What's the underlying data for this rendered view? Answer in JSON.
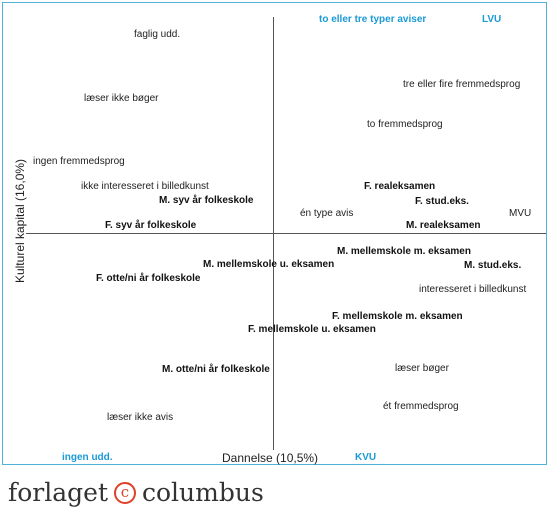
{
  "axes": {
    "x_label": "Dannelse (10,5%)",
    "y_label": "Kulturel kapital (16,0%)"
  },
  "corners": {
    "top_left": "to eller tre typer aviser",
    "top_right": "LVU",
    "bottom_left": "ingen udd.",
    "bottom_right": "KVU",
    "right": "MVU"
  },
  "labels": {
    "faglig_udd": "faglig udd.",
    "laeser_ikke_boeger": "læser ikke bøger",
    "tre_fire_fremmedsprog": "tre eller fire fremmedsprog",
    "to_fremmedsprog": "to fremmedsprog",
    "ingen_fremmedsprog": "ingen fremmedsprog",
    "ikke_interesseret": "ikke interesseret i billedkunst",
    "f_realeksamen": "F. realeksamen",
    "m_syv_aar": "M. syv år folkeskole",
    "f_stud": "F. stud.eks.",
    "en_type_avis": "én type avis",
    "m_realeksamen": "M. realeksamen",
    "f_syv_aar": "F. syv år folkeskole",
    "m_mellemskole_m": "M. mellemskole m. eksamen",
    "m_mellemskole_u": "M. mellemskole u. eksamen",
    "m_stud": "M. stud.eks.",
    "f_otte_ni": "F. otte/ni år folkeskole",
    "interesseret": "interesseret i billedkunst",
    "f_mellemskole_m": "F. mellemskole m. eksamen",
    "f_mellemskole_u": "F. mellemskole u. eksamen",
    "m_otte_ni": "M. otte/ni år folkeskole",
    "laeser_boeger": "læser bøger",
    "et_fremmedsprog": "ét fremmedsprog",
    "laeser_ikke_avis": "læser ikke avis"
  },
  "logo": {
    "left": "forlaget",
    "mark": "c",
    "right": "columbus"
  },
  "colors": {
    "accent": "#1a9ad6",
    "frame": "#4fb3d9",
    "logo_mark": "#e0402a"
  }
}
